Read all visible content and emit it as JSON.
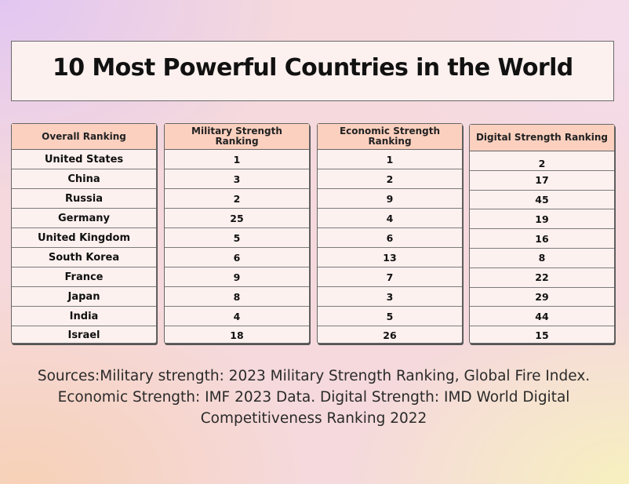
{
  "title": "10 Most Powerful Countries in the World",
  "tables": {
    "overall": {
      "header": "Overall Ranking",
      "rows": [
        "United States",
        "China",
        "Russia",
        "Germany",
        "United Kingdom",
        "South Korea",
        "France",
        "Japan",
        "India",
        "Israel"
      ]
    },
    "military": {
      "header": "Military Strength Ranking",
      "rows": [
        "1",
        "3",
        "2",
        "25",
        "5",
        "6",
        "9",
        "8",
        "4",
        "18"
      ]
    },
    "economic": {
      "header": "Economic Strength Ranking",
      "rows": [
        "1",
        "2",
        "9",
        "4",
        "6",
        "13",
        "7",
        "3",
        "5",
        "26"
      ]
    },
    "digital": {
      "header": "Digital Strength Ranking",
      "rows": [
        "2",
        "17",
        "45",
        "19",
        "16",
        "8",
        "22",
        "29",
        "44",
        "15"
      ]
    }
  },
  "sources": {
    "line1": "Sources:Military strength: 2023 Military Strength Ranking, Global Fire Index.",
    "line2": "Economic Strength: IMF 2023 Data. Digital Strength: IMD World Digital",
    "line3": "Competitiveness Ranking 2022"
  }
}
